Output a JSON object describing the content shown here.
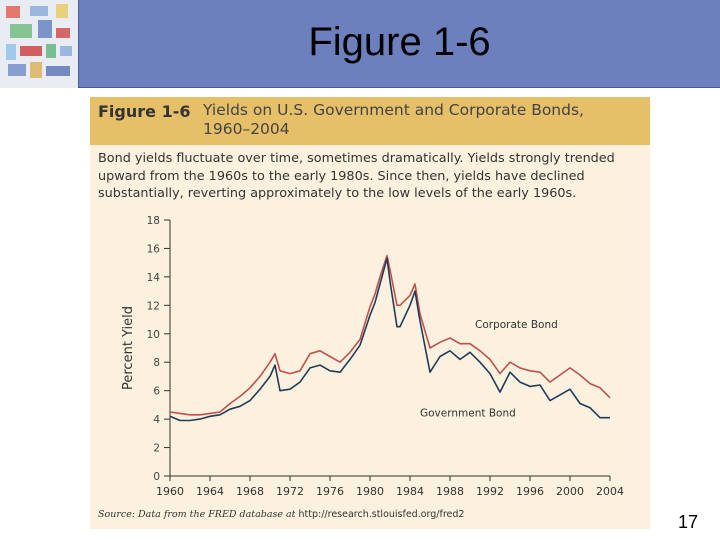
{
  "slide": {
    "title": "Figure 1-6",
    "page_number": "17"
  },
  "figure": {
    "label": "Figure 1-6",
    "title": "Yields on U.S. Government and Corporate Bonds, 1960–2004",
    "caption": "Bond yields fluctuate over time, sometimes dramatically. Yields strongly trended upward from the 1960s to the early 1980s. Since then, yields have declined substantially, reverting approximately to the low levels of the early 1960s.",
    "source_prefix": "Source: Data from the FRED database at ",
    "source_url": "http://research.stlouisfed.org/fred2"
  },
  "colors": {
    "header_bar": "#6b80bd",
    "figure_header": "#e6bf69",
    "figure_background": "#fbf1de",
    "corporate": "#c0504d",
    "government": "#1f3d5a"
  },
  "chart_data": {
    "type": "line",
    "title": "Yields on U.S. Government and Corporate Bonds, 1960–2004",
    "xlabel": "",
    "ylabel": "Percent Yield",
    "xlim": [
      1960,
      2004
    ],
    "ylim": [
      0,
      18
    ],
    "x_ticks": [
      "1960",
      "1964",
      "1968",
      "1972",
      "1976",
      "1980",
      "1984",
      "1988",
      "1992",
      "1996",
      "2000",
      "2004"
    ],
    "y_ticks": [
      "0",
      "2",
      "4",
      "6",
      "8",
      "10",
      "12",
      "14",
      "16",
      "18"
    ],
    "grid": false,
    "series": [
      {
        "name": "Corporate Bond",
        "color": "#c0504d",
        "x": [
          1960,
          1961,
          1962,
          1963,
          1964,
          1965,
          1966,
          1967,
          1968,
          1969,
          1970,
          1970.5,
          1971,
          1972,
          1973,
          1974,
          1975,
          1976,
          1977,
          1978,
          1979,
          1980,
          1980.5,
          1981,
          1981.7,
          1982,
          1982.7,
          1983,
          1984,
          1984.5,
          1985,
          1986,
          1987,
          1988,
          1989,
          1990,
          1991,
          1992,
          1993,
          1994,
          1995,
          1996,
          1997,
          1998,
          1999,
          2000,
          2001,
          2002,
          2003,
          2004
        ],
        "values": [
          4.5,
          4.4,
          4.3,
          4.3,
          4.4,
          4.5,
          5.1,
          5.6,
          6.2,
          7.0,
          8.0,
          8.6,
          7.4,
          7.2,
          7.4,
          8.6,
          8.8,
          8.4,
          8.0,
          8.7,
          9.6,
          11.9,
          12.8,
          14.0,
          15.5,
          14.5,
          12.0,
          12.0,
          12.7,
          13.5,
          11.4,
          9.0,
          9.4,
          9.7,
          9.3,
          9.3,
          8.8,
          8.2,
          7.2,
          8.0,
          7.6,
          7.4,
          7.3,
          6.6,
          7.1,
          7.6,
          7.1,
          6.5,
          6.2,
          5.5
        ]
      },
      {
        "name": "Government Bond",
        "color": "#1f3d5a",
        "x": [
          1960,
          1961,
          1962,
          1963,
          1964,
          1965,
          1966,
          1967,
          1968,
          1969,
          1970,
          1970.5,
          1971,
          1972,
          1973,
          1974,
          1975,
          1976,
          1977,
          1978,
          1979,
          1980,
          1980.5,
          1981,
          1981.7,
          1982,
          1982.7,
          1983,
          1984,
          1984.5,
          1985,
          1986,
          1987,
          1988,
          1989,
          1990,
          1991,
          1992,
          1993,
          1994,
          1995,
          1996,
          1997,
          1998,
          1999,
          2000,
          2001,
          2002,
          2003,
          2004
        ],
        "values": [
          4.2,
          3.9,
          3.9,
          4.0,
          4.2,
          4.3,
          4.7,
          4.9,
          5.3,
          6.1,
          7.0,
          7.8,
          6.0,
          6.1,
          6.6,
          7.6,
          7.8,
          7.4,
          7.3,
          8.2,
          9.2,
          11.3,
          12.2,
          13.5,
          15.3,
          13.7,
          10.5,
          10.5,
          12.0,
          13.0,
          10.9,
          7.3,
          8.4,
          8.8,
          8.2,
          8.7,
          8.0,
          7.2,
          5.9,
          7.3,
          6.6,
          6.3,
          6.4,
          5.3,
          5.7,
          6.1,
          5.1,
          4.8,
          4.1,
          4.1
        ]
      }
    ],
    "annotations": [
      {
        "text": "Corporate Bond",
        "series": "Corporate Bond"
      },
      {
        "text": "Government Bond",
        "series": "Government Bond"
      }
    ]
  }
}
